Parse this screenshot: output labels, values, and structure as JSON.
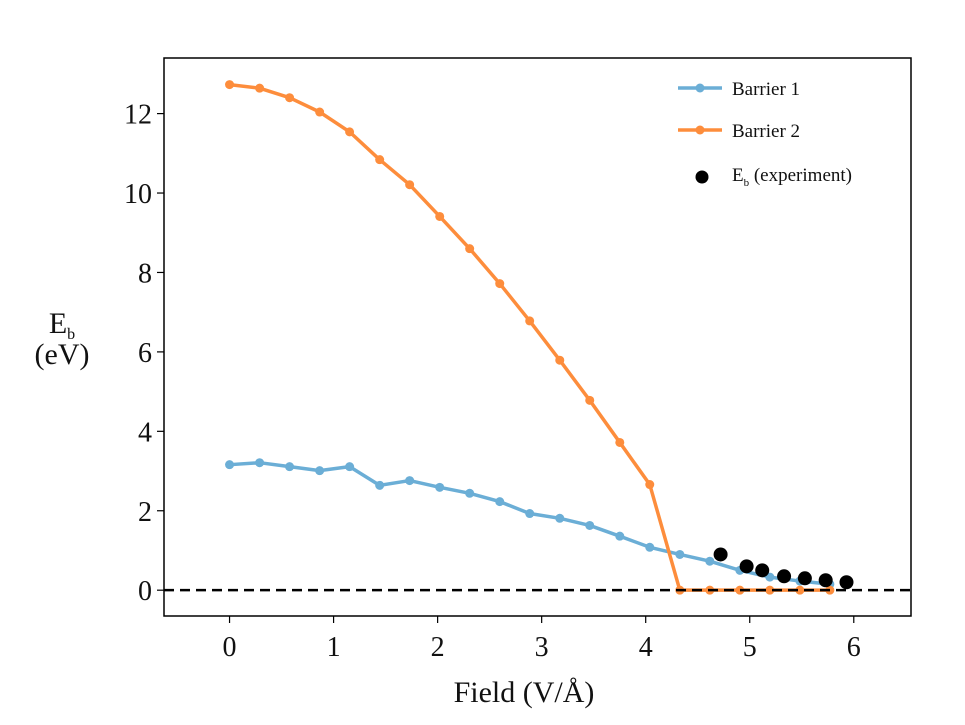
{
  "chart_data": {
    "type": "line",
    "title": "",
    "xlabel": "Field (V/Å)",
    "ylabel_main": "E",
    "ylabel_sub": "b",
    "ylabel_unit": "(eV)",
    "xlim": [
      -0.63,
      6.55
    ],
    "ylim": [
      -0.65,
      13.4
    ],
    "xticks": [
      0,
      1,
      2,
      3,
      4,
      5,
      6
    ],
    "yticks": [
      0,
      2,
      4,
      6,
      8,
      10,
      12
    ],
    "xtick_labels": [
      "0",
      "1",
      "2",
      "3",
      "4",
      "5",
      "6"
    ],
    "ytick_labels": [
      "0",
      "2",
      "4",
      "6",
      "8",
      "10",
      "12"
    ],
    "grid": false,
    "legend_position": "top-right",
    "reference_line": {
      "y": 0,
      "style": "dashed",
      "color": "#000000"
    },
    "series": [
      {
        "name": "Barrier 1",
        "color": "#6baed6",
        "marker": "small-dot-line",
        "x": [
          0,
          0.289,
          0.577,
          0.866,
          1.154,
          1.443,
          1.731,
          2.02,
          2.308,
          2.597,
          2.885,
          3.174,
          3.462,
          3.751,
          4.039,
          4.328,
          4.616,
          4.905,
          5.193,
          5.482,
          5.77
        ],
        "values": [
          3.16,
          3.21,
          3.11,
          3.01,
          3.11,
          2.64,
          2.76,
          2.59,
          2.44,
          2.23,
          1.93,
          1.81,
          1.63,
          1.36,
          1.08,
          0.9,
          0.73,
          0.5,
          0.33,
          0.23,
          0.15
        ]
      },
      {
        "name": "Barrier 2",
        "color": "#fd8d3c",
        "marker": "small-dot-line",
        "x": [
          0,
          0.289,
          0.577,
          0.866,
          1.154,
          1.443,
          1.731,
          2.02,
          2.308,
          2.597,
          2.885,
          3.174,
          3.462,
          3.751,
          4.039,
          4.328,
          4.616,
          4.905,
          5.193,
          5.482,
          5.77
        ],
        "values": [
          12.73,
          12.64,
          12.4,
          12.04,
          11.54,
          10.84,
          10.21,
          9.41,
          8.6,
          7.72,
          6.78,
          5.79,
          4.78,
          3.72,
          2.66,
          0,
          0,
          0,
          0,
          0,
          0
        ]
      },
      {
        "name": "E_b (experiment)",
        "legend_main": "E",
        "legend_sub": "b",
        "legend_rest": " (experiment)",
        "color": "#000000",
        "marker": "large-dot",
        "x": [
          4.72,
          4.97,
          5.12,
          5.33,
          5.53,
          5.73,
          5.93
        ],
        "values": [
          0.9,
          0.6,
          0.5,
          0.35,
          0.3,
          0.25,
          0.2
        ]
      }
    ]
  }
}
